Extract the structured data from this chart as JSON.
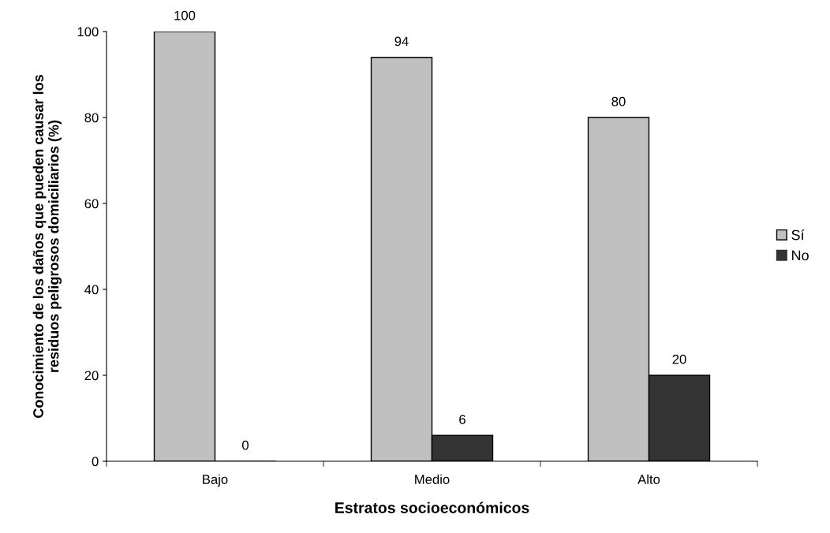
{
  "chart_data": {
    "type": "bar",
    "xlabel": "Estratos socioeconómicos",
    "ylabel": "Conocimiento de los daños que pueden causar los\nresiduos peligrosos domiciliarios (%)",
    "categories": [
      "Bajo",
      "Medio",
      "Alto"
    ],
    "series": [
      {
        "name": "Sí",
        "color": "#c0c0c0",
        "values": [
          100,
          94,
          80
        ]
      },
      {
        "name": "No",
        "color": "#333333",
        "values": [
          0,
          6,
          20
        ]
      }
    ],
    "ylim": [
      0,
      100
    ],
    "yticks": [
      0,
      20,
      40,
      60,
      80,
      100
    ],
    "data_labels": true,
    "legend": "right",
    "grid": false
  }
}
